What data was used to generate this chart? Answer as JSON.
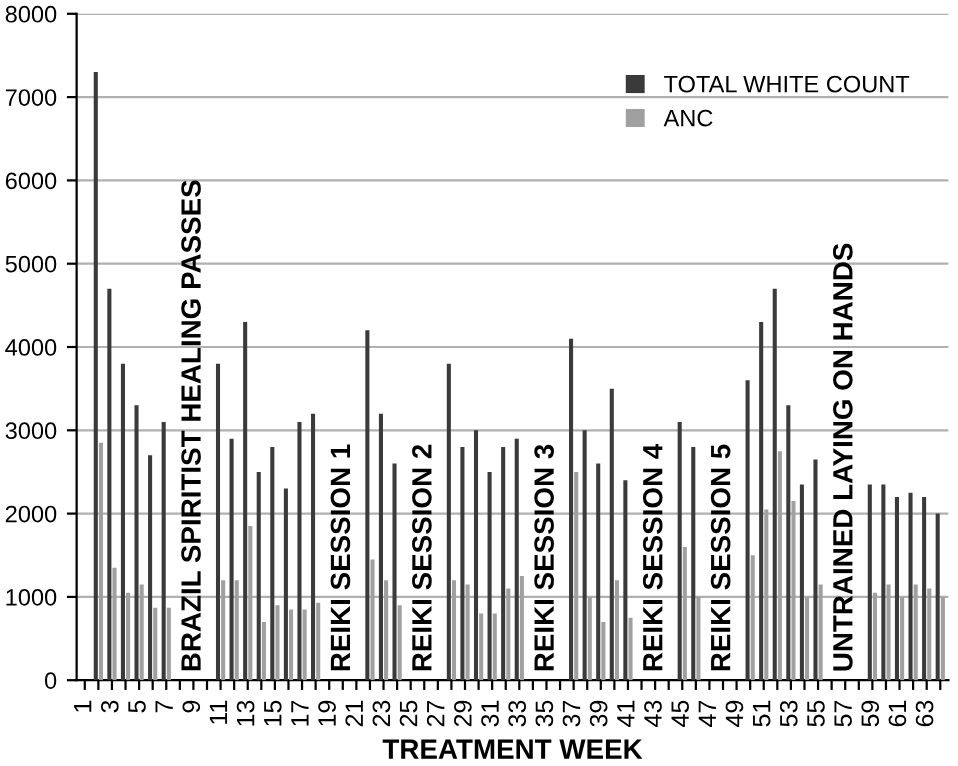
{
  "chart_data": {
    "type": "bar",
    "categories": [
      "1",
      null,
      "3",
      null,
      "5",
      null,
      "7",
      null,
      "9",
      null,
      "11",
      null,
      "13",
      null,
      "15",
      null,
      "17",
      null,
      "19",
      null,
      "21",
      null,
      "23",
      null,
      "25",
      null,
      "27",
      null,
      "29",
      null,
      "31",
      null,
      "33",
      null,
      "35",
      null,
      "37",
      null,
      "39",
      null,
      "41",
      null,
      "43",
      null,
      "45",
      null,
      "47",
      null,
      "49",
      null,
      "51",
      null,
      "53",
      null,
      "55",
      null,
      "57",
      null,
      "59",
      null,
      "61",
      null,
      "63",
      null
    ],
    "series": [
      {
        "name": "TOTAL WHITE COUNT",
        "color": "#3a3a3a",
        "values": [
          null,
          7300,
          4700,
          3800,
          3300,
          2700,
          3100,
          null,
          null,
          null,
          3800,
          2900,
          4300,
          2500,
          2800,
          2300,
          3100,
          3200,
          null,
          null,
          null,
          4200,
          3200,
          2600,
          null,
          null,
          null,
          3800,
          2800,
          3000,
          2500,
          2800,
          2900,
          null,
          null,
          null,
          4100,
          3000,
          2600,
          3500,
          2400,
          null,
          null,
          null,
          3100,
          2800,
          null,
          null,
          null,
          3600,
          4300,
          4700,
          3300,
          2350,
          2650,
          null,
          null,
          null,
          2350,
          2350,
          2200,
          2250,
          2200,
          2000
        ]
      },
      {
        "name": "ANC",
        "color": "#a0a0a0",
        "values": [
          null,
          2850,
          1350,
          1050,
          1150,
          870,
          870,
          null,
          null,
          null,
          1200,
          1200,
          1850,
          700,
          900,
          850,
          850,
          930,
          null,
          null,
          null,
          1450,
          1200,
          900,
          null,
          null,
          null,
          1200,
          1150,
          800,
          800,
          1100,
          1250,
          null,
          null,
          null,
          2500,
          1000,
          700,
          1200,
          750,
          null,
          null,
          null,
          1600,
          1000,
          null,
          null,
          null,
          1500,
          2050,
          2750,
          2150,
          1000,
          1150,
          null,
          null,
          null,
          1050,
          1150,
          1000,
          1150,
          1100,
          1000
        ]
      }
    ],
    "xlabel": "TREATMENT WEEK",
    "annotations": [
      "BRAZIL SPIRITIST HEALING PASSES",
      "REIKI SESSION 1",
      "REIKI SESSION 2",
      "REIKI SESSION 3",
      "REIKI SESSION 4",
      "REIKI SESSION 5",
      "UNTRAINED LAYING ON HANDS"
    ],
    "ylim": [
      0,
      8000
    ],
    "yticks": [
      0,
      1000,
      2000,
      3000,
      4000,
      5000,
      6000,
      7000,
      8000
    ],
    "grid": "y",
    "legend": "top right"
  }
}
